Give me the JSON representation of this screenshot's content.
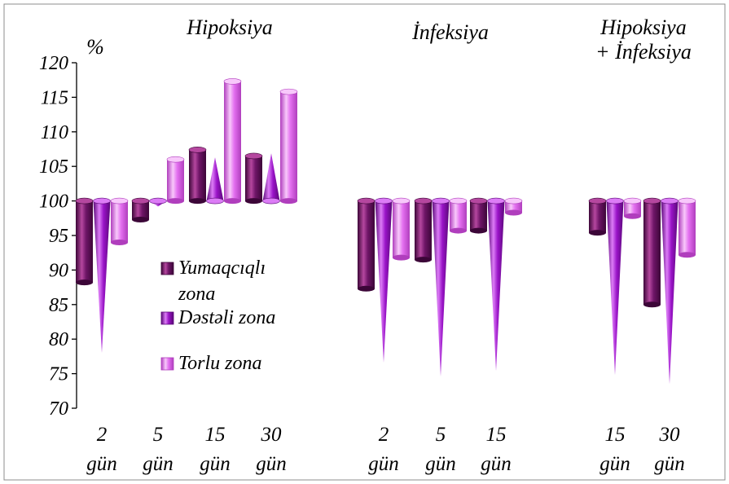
{
  "chart_data": {
    "type": "bar",
    "ylabel": "%",
    "ylim": [
      70,
      120
    ],
    "baseline": 100,
    "yticks": [
      70,
      75,
      80,
      85,
      90,
      95,
      100,
      105,
      110,
      115,
      120
    ],
    "grid": false,
    "legend_position": "inside-left",
    "groups": [
      {
        "label": "Hipoksiya",
        "label_lines": [
          "Hipoksiya"
        ],
        "categories": [
          {
            "line1": "2",
            "line2": "gün",
            "values": [
              88.2,
              78.0,
              94.0
            ]
          },
          {
            "line1": "5",
            "line2": "gün",
            "values": [
              97.3,
              99.2,
              106.0
            ]
          },
          {
            "line1": "15",
            "line2": "gün",
            "values": [
              107.4,
              106.3,
              117.3
            ]
          },
          {
            "line1": "30",
            "line2": "gün",
            "values": [
              106.5,
              106.9,
              115.8
            ]
          }
        ]
      },
      {
        "label": "İnfeksiya",
        "label_lines": [
          "İnfeksiya"
        ],
        "categories": [
          {
            "line1": "2",
            "line2": "gün",
            "values": [
              87.3,
              76.6,
              91.8
            ]
          },
          {
            "line1": "5",
            "line2": "gün",
            "values": [
              91.5,
              74.6,
              95.7
            ]
          },
          {
            "line1": "15",
            "line2": "gün",
            "values": [
              95.7,
              75.4,
              98.3
            ]
          }
        ]
      },
      {
        "label": "Hipoksiya + İnfeksiya",
        "label_lines": [
          "Hipoksiya",
          "+ İnfeksiya"
        ],
        "categories": [
          {
            "line1": "15",
            "line2": "gün",
            "values": [
              95.4,
              74.8,
              97.8
            ]
          },
          {
            "line1": "30",
            "line2": "gün",
            "values": [
              85.0,
              73.5,
              92.2
            ]
          }
        ]
      }
    ],
    "series": [
      {
        "name": "Yumaqcıqlı zona",
        "name_lines": [
          "Yumaqcıqlı",
          "zona"
        ],
        "shape": "cylinder",
        "color": "#6e1567",
        "light": "#b5479f",
        "dark": "#3c0638"
      },
      {
        "name": "Dəstəli zona",
        "name_lines": [
          "Dəstəli zona"
        ],
        "shape": "cone",
        "color": "#9a14c8",
        "light": "#dc7cf6",
        "dark": "#5a0778"
      },
      {
        "name": "Torlu zona",
        "name_lines": [
          "Torlu zona"
        ],
        "shape": "cylinder",
        "color": "#e36ff0",
        "light": "#f8c8fb",
        "dark": "#b03ebd"
      }
    ]
  }
}
